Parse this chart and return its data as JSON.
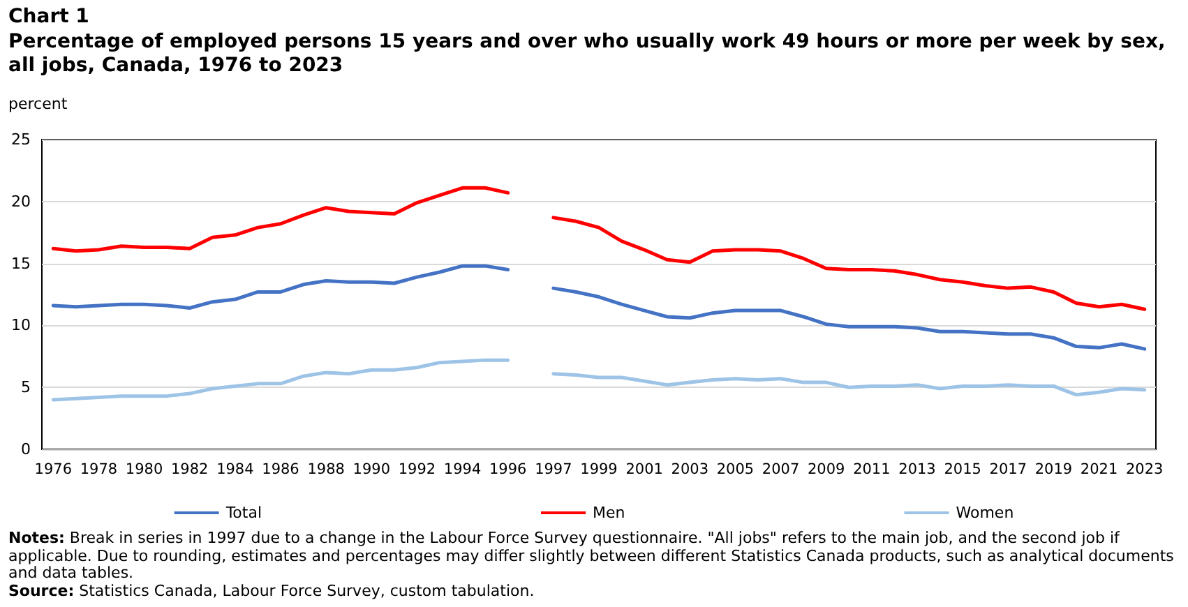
{
  "chart_data": {
    "type": "line",
    "title": "Chart 1",
    "subtitle": "Percentage of employed persons 15 years and over who usually work 49 hours or more per week by sex, all jobs, Canada, 1976 to 2023",
    "ylabel": "percent",
    "categories": [
      "1976",
      null,
      "1978",
      null,
      "1980",
      null,
      "1982",
      null,
      "1984",
      null,
      "1986",
      null,
      "1988",
      null,
      "1990",
      null,
      "1992",
      null,
      "1994",
      null,
      "1996",
      null,
      "1997",
      null,
      "1999",
      null,
      "2001",
      null,
      "2003",
      null,
      "2005",
      null,
      "2007",
      null,
      "2009",
      null,
      "2011",
      null,
      "2013",
      null,
      "2015",
      null,
      "2017",
      null,
      "2019",
      null,
      "2021",
      null,
      "2023"
    ],
    "series": [
      {
        "name": "Total",
        "color": "#4472c4",
        "values": [
          11.6,
          11.5,
          11.6,
          11.7,
          11.7,
          11.6,
          11.4,
          11.9,
          12.1,
          12.7,
          12.7,
          13.3,
          13.6,
          13.5,
          13.5,
          13.4,
          13.9,
          14.3,
          14.8,
          14.8,
          14.5,
          null,
          13.0,
          12.7,
          12.3,
          11.7,
          11.2,
          10.7,
          10.6,
          11.0,
          11.2,
          11.2,
          11.2,
          10.7,
          10.1,
          9.9,
          9.9,
          9.9,
          9.8,
          9.5,
          9.5,
          9.4,
          9.3,
          9.3,
          9.0,
          8.3,
          8.2,
          8.5,
          8.1
        ]
      },
      {
        "name": "Men",
        "color": "#ff0000",
        "values": [
          16.2,
          16.0,
          16.1,
          16.4,
          16.3,
          16.3,
          16.2,
          17.1,
          17.3,
          17.9,
          18.2,
          18.9,
          19.5,
          19.2,
          19.1,
          19.0,
          19.9,
          20.5,
          21.1,
          21.1,
          20.7,
          null,
          18.7,
          18.4,
          17.9,
          16.8,
          16.1,
          15.3,
          15.1,
          16.0,
          16.1,
          16.1,
          16.0,
          15.4,
          14.6,
          14.5,
          14.5,
          14.4,
          14.1,
          13.7,
          13.5,
          13.2,
          13.0,
          13.1,
          12.7,
          11.8,
          11.5,
          11.7,
          11.3
        ]
      },
      {
        "name": "Women",
        "color": "#9dc3e6",
        "values": [
          4.0,
          4.1,
          4.2,
          4.3,
          4.3,
          4.3,
          4.5,
          4.9,
          5.1,
          5.3,
          5.3,
          5.9,
          6.2,
          6.1,
          6.4,
          6.4,
          6.6,
          7.0,
          7.1,
          7.2,
          7.2,
          null,
          6.1,
          6.0,
          5.8,
          5.8,
          5.5,
          5.2,
          5.4,
          5.6,
          5.7,
          5.6,
          5.7,
          5.4,
          5.4,
          5.0,
          5.1,
          5.1,
          5.2,
          4.9,
          5.1,
          5.1,
          5.2,
          5.1,
          5.1,
          4.4,
          4.6,
          4.9,
          4.8
        ]
      }
    ],
    "ylim": [
      0,
      25
    ],
    "yticks": [
      0,
      5,
      10,
      15,
      20,
      25
    ],
    "grid": "y",
    "legend": "bottom",
    "marker": "none",
    "line_style": "solid",
    "annotations": [
      "Notes: Break in series in 1997 due to a change in the Labour Force Survey questionnaire. \"All jobs\" refers to the main job, and the second job if applicable. Due to rounding, estimates and percentages may differ slightly between different Statistics Canada products, such as analytical documents and data tables.",
      "Source: Statistics Canada, Labour Force Survey, custom tabulation."
    ]
  }
}
